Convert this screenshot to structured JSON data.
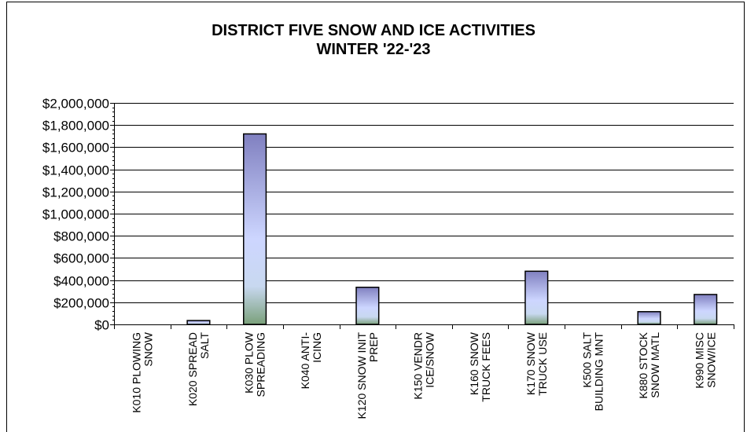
{
  "chart_data": {
    "type": "bar",
    "title": [
      "DISTRICT FIVE SNOW AND ICE ACTIVITIES",
      "WINTER '22-'23"
    ],
    "xlabel": "",
    "ylabel": "",
    "ylim": [
      0,
      2000000
    ],
    "yticks": [
      0,
      200000,
      400000,
      600000,
      800000,
      1000000,
      1200000,
      1400000,
      1600000,
      1800000,
      2000000
    ],
    "ytick_labels": [
      "$0",
      "$200,000",
      "$400,000",
      "$600,000",
      "$800,000",
      "$1,000,000",
      "$1,200,000",
      "$1,400,000",
      "$1,600,000",
      "$1,800,000",
      "$2,000,000"
    ],
    "categories": [
      [
        "K010 PLOWING",
        "SNOW"
      ],
      [
        "K020 SPREAD",
        "SALT"
      ],
      [
        "K030 PLOW",
        "SPREADING"
      ],
      [
        "K040 ANTI-",
        "ICING"
      ],
      [
        "K120 SNOW INIT",
        "PREP"
      ],
      [
        "K150 VENDR",
        "ICE/SNOW"
      ],
      [
        "K160 SNOW",
        "TRUCK FEES"
      ],
      [
        "K170 SNOW",
        "TRUCK USE"
      ],
      [
        "K500 SALT",
        "BUILDING MNT"
      ],
      [
        "K880 STOCK",
        "SNOW MATL"
      ],
      [
        "K990 MISC",
        "SNOW/ICE"
      ]
    ],
    "values": [
      0,
      35000,
      1720000,
      0,
      335000,
      0,
      0,
      480000,
      0,
      115000,
      270000
    ],
    "grid": true,
    "legend": "none",
    "colors": {
      "bar_top": "#8080c0",
      "bar_mid": "#cdd6ff",
      "bar_bottom": "#7aa07a",
      "grid": "#000000"
    }
  }
}
